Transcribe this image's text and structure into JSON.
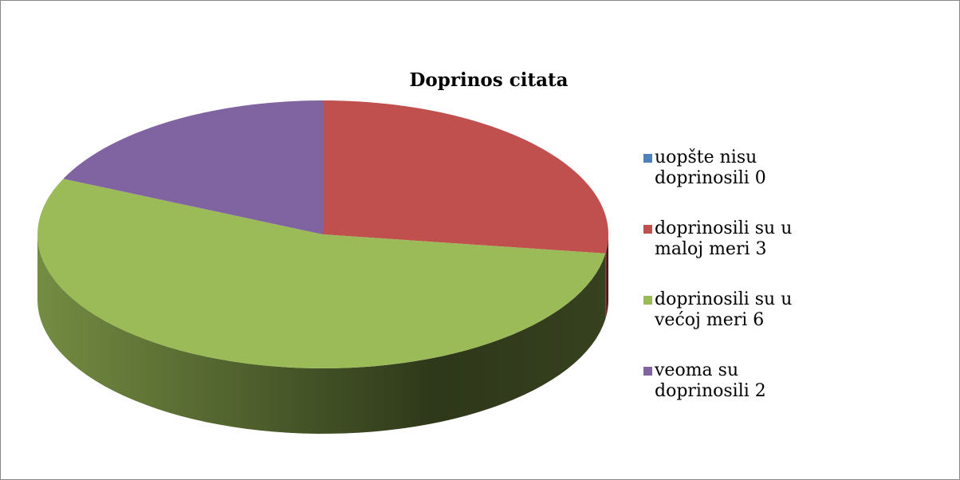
{
  "chart_data": {
    "type": "pie",
    "title": "Doprinos citata",
    "categories": [
      "uopšte nisu doprinosili 0",
      "doprinosili su u maloj meri 3",
      "doprinosili su u većoj meri 6",
      "veoma su doprinosili 2"
    ],
    "values": [
      0,
      3,
      6,
      2
    ],
    "colors": [
      "#4f81bd",
      "#c0504d",
      "#9bbb59",
      "#8064a2"
    ],
    "legend": "right"
  }
}
